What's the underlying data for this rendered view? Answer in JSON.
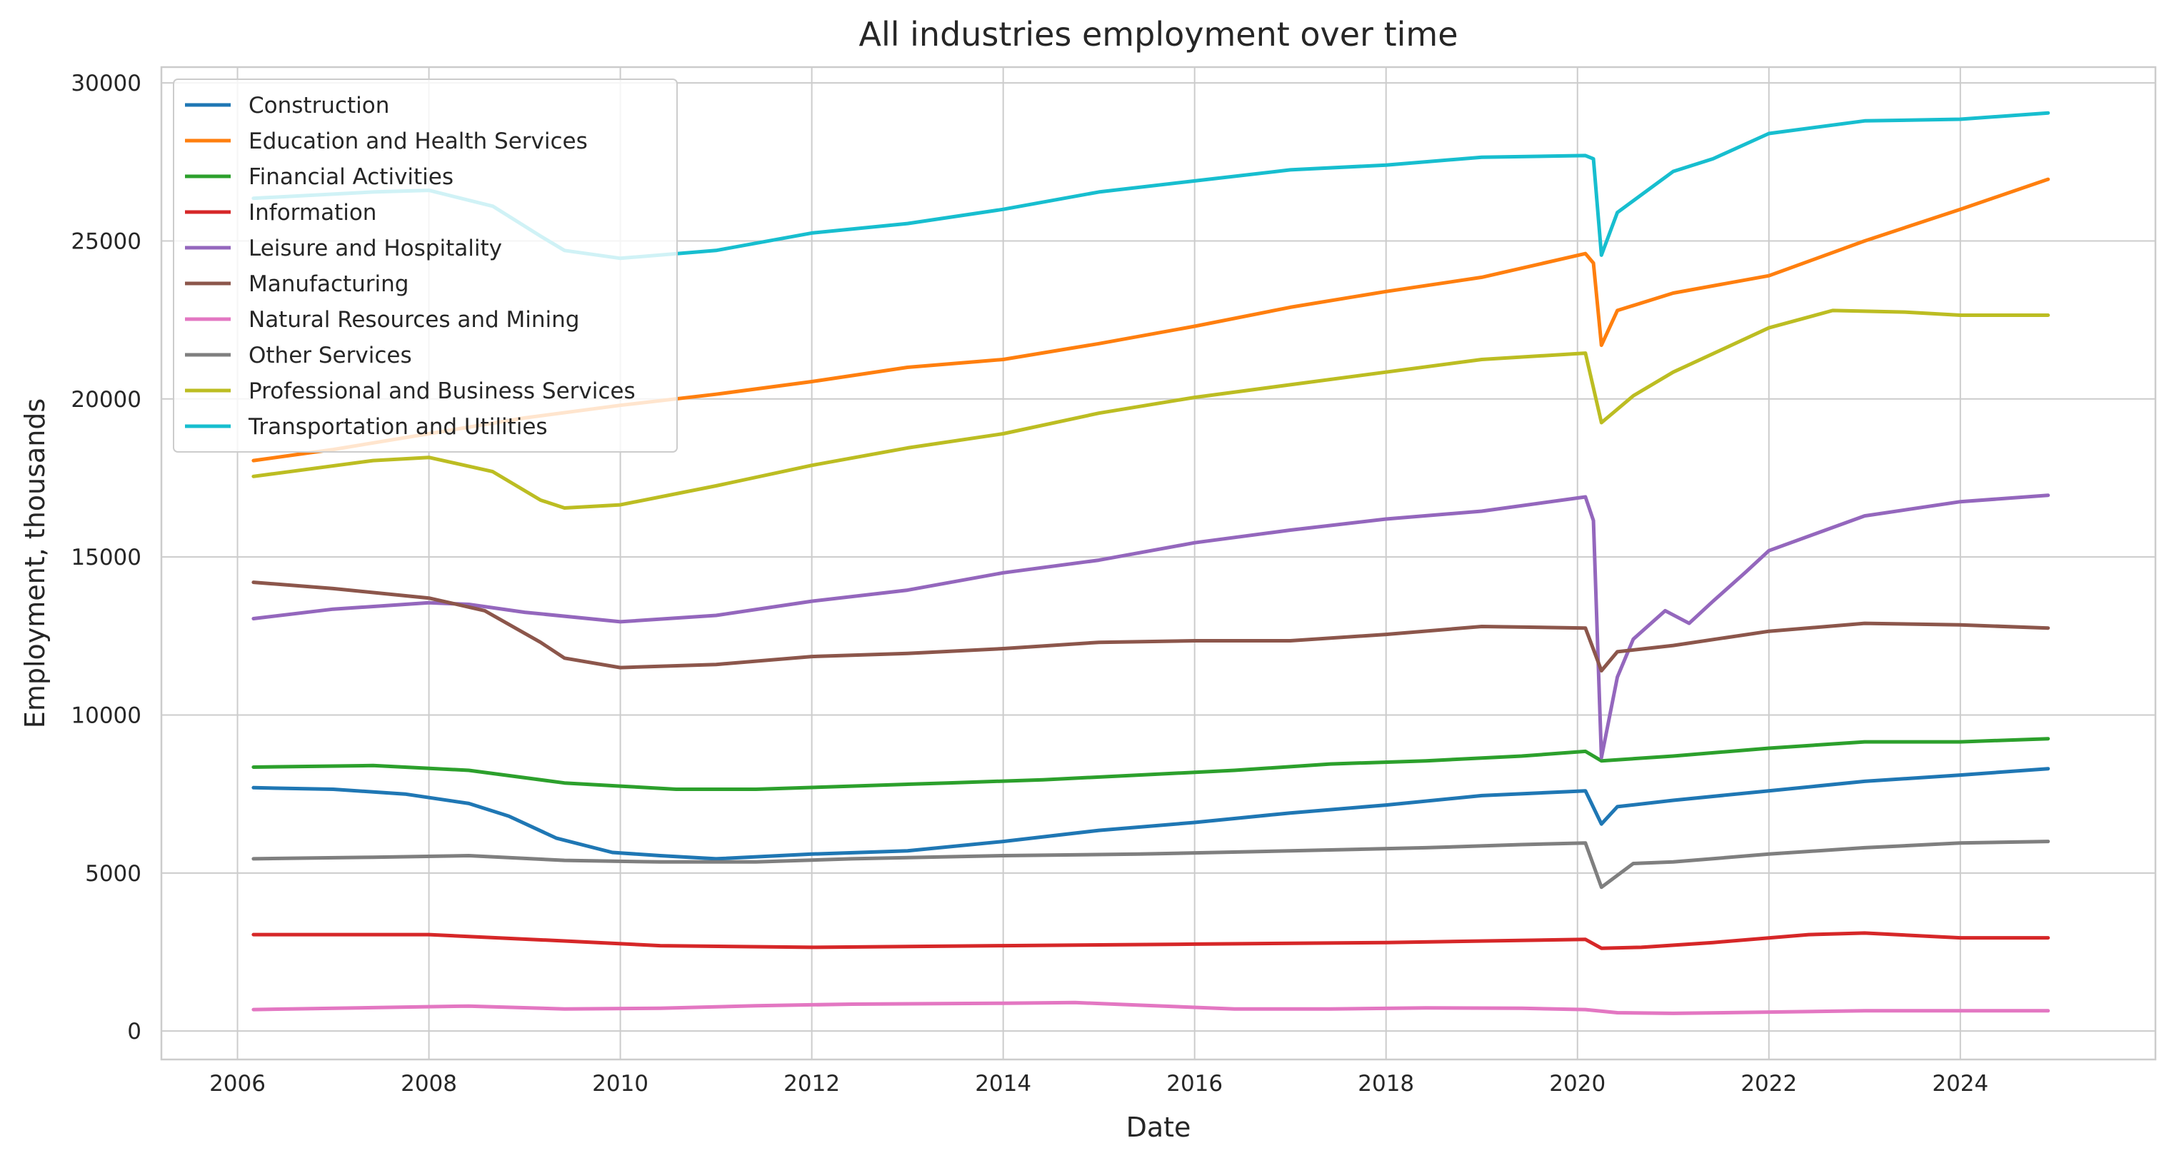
{
  "chart_data": {
    "type": "line",
    "title": "All industries employment over time",
    "xlabel": "Date",
    "ylabel": "Employment, thousands",
    "xlim": [
      "2005-03-15",
      "2026-01-15"
    ],
    "ylim": [
      -900,
      30500
    ],
    "x_ticks": [
      "2006",
      "2008",
      "2010",
      "2012",
      "2014",
      "2016",
      "2018",
      "2020",
      "2022",
      "2024"
    ],
    "y_ticks": [
      "0",
      "5000",
      "10000",
      "15000",
      "20000",
      "25000",
      "30000"
    ],
    "grid": true,
    "legend_position": "top-left",
    "series": [
      {
        "name": "Construction",
        "color": "#1f77b4",
        "points": [
          [
            "2006-03",
            7700
          ],
          [
            "2007-01",
            7650
          ],
          [
            "2007-10",
            7500
          ],
          [
            "2008-06",
            7200
          ],
          [
            "2008-11",
            6800
          ],
          [
            "2009-05",
            6100
          ],
          [
            "2009-12",
            5650
          ],
          [
            "2010-06",
            5550
          ],
          [
            "2011-01",
            5450
          ],
          [
            "2012-01",
            5600
          ],
          [
            "2013-01",
            5700
          ],
          [
            "2014-01",
            6000
          ],
          [
            "2015-01",
            6350
          ],
          [
            "2016-01",
            6600
          ],
          [
            "2017-01",
            6900
          ],
          [
            "2018-01",
            7150
          ],
          [
            "2019-01",
            7450
          ],
          [
            "2020-02",
            7600
          ],
          [
            "2020-04",
            6550
          ],
          [
            "2020-06",
            7100
          ],
          [
            "2021-01",
            7300
          ],
          [
            "2022-01",
            7600
          ],
          [
            "2023-01",
            7900
          ],
          [
            "2024-01",
            8100
          ],
          [
            "2024-12",
            8300
          ]
        ]
      },
      {
        "name": "Education and Health Services",
        "color": "#ff7f0e",
        "points": [
          [
            "2006-03",
            18050
          ],
          [
            "2007-01",
            18400
          ],
          [
            "2008-01",
            18900
          ],
          [
            "2009-01",
            19400
          ],
          [
            "2010-01",
            19800
          ],
          [
            "2011-01",
            20150
          ],
          [
            "2012-01",
            20550
          ],
          [
            "2013-01",
            21000
          ],
          [
            "2014-01",
            21250
          ],
          [
            "2015-01",
            21750
          ],
          [
            "2016-01",
            22300
          ],
          [
            "2017-01",
            22900
          ],
          [
            "2018-01",
            23400
          ],
          [
            "2019-01",
            23850
          ],
          [
            "2020-02",
            24600
          ],
          [
            "2020-03",
            24300
          ],
          [
            "2020-04",
            21700
          ],
          [
            "2020-06",
            22800
          ],
          [
            "2021-01",
            23350
          ],
          [
            "2022-01",
            23900
          ],
          [
            "2023-01",
            25000
          ],
          [
            "2024-01",
            26000
          ],
          [
            "2024-12",
            26950
          ]
        ]
      },
      {
        "name": "Financial Activities",
        "color": "#2ca02c",
        "points": [
          [
            "2006-03",
            8350
          ],
          [
            "2007-06",
            8400
          ],
          [
            "2008-06",
            8250
          ],
          [
            "2009-06",
            7850
          ],
          [
            "2010-01",
            7750
          ],
          [
            "2010-08",
            7650
          ],
          [
            "2011-06",
            7650
          ],
          [
            "2012-06",
            7750
          ],
          [
            "2013-06",
            7850
          ],
          [
            "2014-06",
            7950
          ],
          [
            "2015-06",
            8100
          ],
          [
            "2016-06",
            8250
          ],
          [
            "2017-06",
            8450
          ],
          [
            "2018-06",
            8550
          ],
          [
            "2019-06",
            8700
          ],
          [
            "2020-02",
            8850
          ],
          [
            "2020-04",
            8550
          ],
          [
            "2021-01",
            8700
          ],
          [
            "2022-01",
            8950
          ],
          [
            "2023-01",
            9150
          ],
          [
            "2024-01",
            9150
          ],
          [
            "2024-12",
            9250
          ]
        ]
      },
      {
        "name": "Information",
        "color": "#d62728",
        "points": [
          [
            "2006-03",
            3050
          ],
          [
            "2008-01",
            3050
          ],
          [
            "2009-06",
            2850
          ],
          [
            "2010-06",
            2700
          ],
          [
            "2012-01",
            2650
          ],
          [
            "2014-01",
            2700
          ],
          [
            "2016-01",
            2750
          ],
          [
            "2018-01",
            2800
          ],
          [
            "2020-02",
            2900
          ],
          [
            "2020-04",
            2620
          ],
          [
            "2020-09",
            2650
          ],
          [
            "2021-06",
            2800
          ],
          [
            "2022-06",
            3050
          ],
          [
            "2023-01",
            3100
          ],
          [
            "2024-01",
            2950
          ],
          [
            "2024-12",
            2950
          ]
        ]
      },
      {
        "name": "Leisure and Hospitality",
        "color": "#9467bd",
        "points": [
          [
            "2006-03",
            13050
          ],
          [
            "2007-01",
            13350
          ],
          [
            "2008-01",
            13550
          ],
          [
            "2008-06",
            13500
          ],
          [
            "2009-01",
            13250
          ],
          [
            "2010-01",
            12950
          ],
          [
            "2011-01",
            13150
          ],
          [
            "2012-01",
            13600
          ],
          [
            "2013-01",
            13950
          ],
          [
            "2014-01",
            14500
          ],
          [
            "2015-01",
            14900
          ],
          [
            "2016-01",
            15450
          ],
          [
            "2017-01",
            15850
          ],
          [
            "2018-01",
            16200
          ],
          [
            "2019-01",
            16450
          ],
          [
            "2020-02",
            16900
          ],
          [
            "2020-03",
            16150
          ],
          [
            "2020-04",
            8650
          ],
          [
            "2020-06",
            11200
          ],
          [
            "2020-08",
            12400
          ],
          [
            "2020-12",
            13300
          ],
          [
            "2021-03",
            12900
          ],
          [
            "2021-06",
            13600
          ],
          [
            "2021-10",
            14500
          ],
          [
            "2022-01",
            15200
          ],
          [
            "2023-01",
            16300
          ],
          [
            "2024-01",
            16750
          ],
          [
            "2024-12",
            16950
          ]
        ]
      },
      {
        "name": "Manufacturing",
        "color": "#8c564b",
        "points": [
          [
            "2006-03",
            14200
          ],
          [
            "2007-01",
            14000
          ],
          [
            "2008-01",
            13700
          ],
          [
            "2008-08",
            13300
          ],
          [
            "2009-03",
            12300
          ],
          [
            "2009-06",
            11800
          ],
          [
            "2010-01",
            11500
          ],
          [
            "2011-01",
            11600
          ],
          [
            "2012-01",
            11850
          ],
          [
            "2013-01",
            11950
          ],
          [
            "2014-01",
            12100
          ],
          [
            "2015-01",
            12300
          ],
          [
            "2016-01",
            12350
          ],
          [
            "2017-01",
            12350
          ],
          [
            "2018-01",
            12550
          ],
          [
            "2019-01",
            12800
          ],
          [
            "2020-02",
            12750
          ],
          [
            "2020-04",
            11400
          ],
          [
            "2020-06",
            12000
          ],
          [
            "2021-01",
            12200
          ],
          [
            "2022-01",
            12650
          ],
          [
            "2023-01",
            12900
          ],
          [
            "2024-01",
            12850
          ],
          [
            "2024-12",
            12750
          ]
        ]
      },
      {
        "name": "Natural Resources and Mining",
        "color": "#e377c2",
        "points": [
          [
            "2006-03",
            680
          ],
          [
            "2007-06",
            740
          ],
          [
            "2008-06",
            790
          ],
          [
            "2009-06",
            700
          ],
          [
            "2010-06",
            720
          ],
          [
            "2011-06",
            800
          ],
          [
            "2012-06",
            850
          ],
          [
            "2014-01",
            880
          ],
          [
            "2014-10",
            900
          ],
          [
            "2015-06",
            820
          ],
          [
            "2016-06",
            700
          ],
          [
            "2017-06",
            700
          ],
          [
            "2018-06",
            730
          ],
          [
            "2019-06",
            720
          ],
          [
            "2020-02",
            680
          ],
          [
            "2020-06",
            580
          ],
          [
            "2021-01",
            560
          ],
          [
            "2022-01",
            600
          ],
          [
            "2023-01",
            640
          ],
          [
            "2024-01",
            640
          ],
          [
            "2024-12",
            640
          ]
        ]
      },
      {
        "name": "Other Services",
        "color": "#7f7f7f",
        "points": [
          [
            "2006-03",
            5450
          ],
          [
            "2007-06",
            5500
          ],
          [
            "2008-06",
            5550
          ],
          [
            "2009-06",
            5400
          ],
          [
            "2010-06",
            5350
          ],
          [
            "2011-06",
            5350
          ],
          [
            "2012-06",
            5450
          ],
          [
            "2014-01",
            5550
          ],
          [
            "2015-06",
            5600
          ],
          [
            "2017-01",
            5700
          ],
          [
            "2018-06",
            5800
          ],
          [
            "2019-06",
            5900
          ],
          [
            "2020-02",
            5950
          ],
          [
            "2020-04",
            4550
          ],
          [
            "2020-08",
            5300
          ],
          [
            "2021-01",
            5350
          ],
          [
            "2022-01",
            5600
          ],
          [
            "2023-01",
            5800
          ],
          [
            "2024-01",
            5950
          ],
          [
            "2024-12",
            6000
          ]
        ]
      },
      {
        "name": "Professional and Business Services",
        "color": "#bcbd22",
        "points": [
          [
            "2006-03",
            17550
          ],
          [
            "2007-06",
            18050
          ],
          [
            "2008-01",
            18150
          ],
          [
            "2008-09",
            17700
          ],
          [
            "2009-03",
            16800
          ],
          [
            "2009-06",
            16550
          ],
          [
            "2010-01",
            16650
          ],
          [
            "2011-01",
            17250
          ],
          [
            "2012-01",
            17900
          ],
          [
            "2013-01",
            18450
          ],
          [
            "2014-01",
            18900
          ],
          [
            "2015-01",
            19550
          ],
          [
            "2016-01",
            20050
          ],
          [
            "2017-01",
            20450
          ],
          [
            "2018-01",
            20850
          ],
          [
            "2019-01",
            21250
          ],
          [
            "2020-02",
            21450
          ],
          [
            "2020-04",
            19250
          ],
          [
            "2020-08",
            20100
          ],
          [
            "2021-01",
            20850
          ],
          [
            "2022-01",
            22250
          ],
          [
            "2022-09",
            22800
          ],
          [
            "2023-06",
            22750
          ],
          [
            "2024-01",
            22650
          ],
          [
            "2024-12",
            22650
          ]
        ]
      },
      {
        "name": "Transportation and Utilities",
        "color": "#17becf",
        "points": [
          [
            "2006-03",
            26350
          ],
          [
            "2007-06",
            26550
          ],
          [
            "2008-01",
            26600
          ],
          [
            "2008-09",
            26100
          ],
          [
            "2009-03",
            25150
          ],
          [
            "2009-06",
            24700
          ],
          [
            "2010-01",
            24450
          ],
          [
            "2011-01",
            24700
          ],
          [
            "2012-01",
            25250
          ],
          [
            "2013-01",
            25550
          ],
          [
            "2014-01",
            26000
          ],
          [
            "2015-01",
            26550
          ],
          [
            "2016-01",
            26900
          ],
          [
            "2017-01",
            27250
          ],
          [
            "2018-01",
            27400
          ],
          [
            "2019-01",
            27650
          ],
          [
            "2020-02",
            27700
          ],
          [
            "2020-03",
            27600
          ],
          [
            "2020-04",
            24550
          ],
          [
            "2020-06",
            25900
          ],
          [
            "2021-01",
            27200
          ],
          [
            "2021-06",
            27600
          ],
          [
            "2022-01",
            28400
          ],
          [
            "2023-01",
            28800
          ],
          [
            "2024-01",
            28850
          ],
          [
            "2024-12",
            29050
          ]
        ]
      }
    ]
  }
}
